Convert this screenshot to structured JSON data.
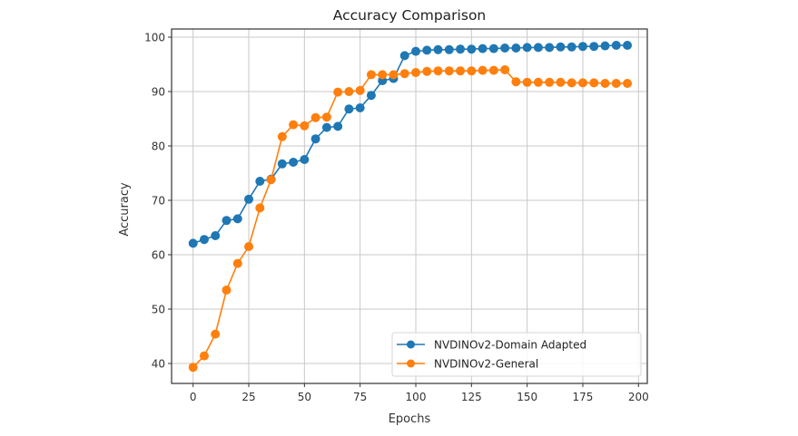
{
  "chart_data": {
    "type": "line",
    "title": "Accuracy Comparison",
    "xlabel": "Epochs",
    "ylabel": "Accuracy",
    "xlim": [
      -9,
      205
    ],
    "ylim": [
      38.7,
      101.5
    ],
    "xticks": [
      0,
      25,
      50,
      75,
      100,
      125,
      150,
      175,
      200
    ],
    "yticks": [
      40,
      50,
      60,
      70,
      80,
      90,
      100
    ],
    "grid": true,
    "legend_position": "lower right",
    "x": [
      0,
      5,
      10,
      15,
      20,
      25,
      30,
      35,
      40,
      45,
      50,
      55,
      60,
      65,
      70,
      75,
      80,
      85,
      90,
      95,
      100,
      105,
      110,
      115,
      120,
      125,
      130,
      135,
      140,
      145,
      150,
      155,
      160,
      165,
      170,
      175,
      180,
      185,
      190,
      195
    ],
    "series": [
      {
        "name": "NVDINOv2-Domain Adapted",
        "color": "#1f77b4",
        "marker": "circle",
        "values": [
          62.1,
          62.8,
          63.5,
          66.3,
          66.6,
          70.2,
          73.5,
          73.9,
          76.7,
          77.0,
          77.5,
          81.3,
          83.4,
          83.6,
          86.8,
          87.0,
          89.3,
          92.0,
          92.4,
          96.6,
          97.4,
          97.6,
          97.7,
          97.7,
          97.8,
          97.8,
          97.9,
          97.9,
          98.0,
          98.0,
          98.1,
          98.1,
          98.1,
          98.2,
          98.2,
          98.3,
          98.3,
          98.4,
          98.5,
          98.5
        ]
      },
      {
        "name": "NVDINOv2-General",
        "color": "#ff7f0e",
        "marker": "circle",
        "values": [
          39.3,
          41.4,
          45.4,
          53.5,
          58.4,
          61.5,
          68.6,
          73.8,
          81.7,
          83.9,
          83.7,
          85.2,
          85.3,
          89.9,
          90.0,
          90.2,
          93.1,
          93.1,
          93.1,
          93.3,
          93.5,
          93.7,
          93.8,
          93.8,
          93.8,
          93.8,
          93.9,
          93.9,
          94.0,
          91.8,
          91.7,
          91.7,
          91.7,
          91.7,
          91.6,
          91.6,
          91.6,
          91.5,
          91.5,
          91.5
        ]
      }
    ]
  }
}
